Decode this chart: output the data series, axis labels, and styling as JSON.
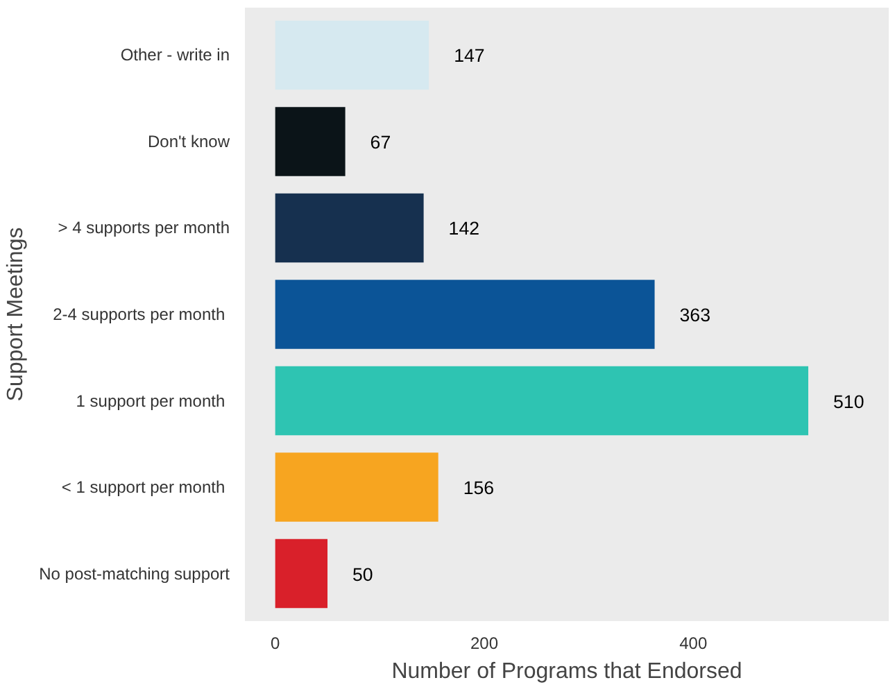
{
  "chart_data": {
    "type": "bar",
    "orientation": "horizontal",
    "xlabel": "Number of Programs that Endorsed",
    "ylabel": "Support Meetings",
    "categories": [
      "Other - write in",
      "Don't know",
      "> 4 supports per month",
      "2-4 supports  per month",
      "1  support per month",
      "< 1  support per month",
      "No post-matching support"
    ],
    "values": [
      147,
      67,
      142,
      363,
      510,
      156,
      50
    ],
    "colors": [
      "#d6e9f0",
      "#0b1418",
      "#16304f",
      "#0b5497",
      "#2ec4b2",
      "#f7a520",
      "#d9202a"
    ],
    "xlim": [
      -29,
      587
    ],
    "xticks": [
      0,
      200,
      400
    ],
    "data_labels": true,
    "grid": false
  }
}
